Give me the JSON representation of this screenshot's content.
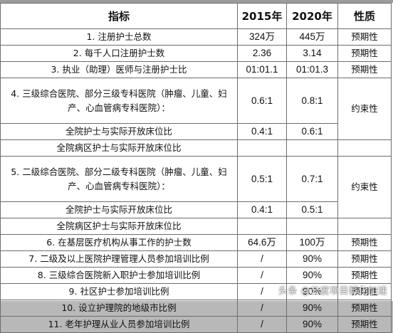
{
  "table": {
    "headers": [
      "指标",
      "2015年",
      "2020年",
      "性质"
    ],
    "rows": [
      [
        "1. 注册护士总数",
        "324万",
        "445万",
        "预期性"
      ],
      [
        "2. 每千人口注册护士数",
        "2.36",
        "3.14",
        "预期性"
      ],
      [
        "3. 执业（助理）医师与注册护士比",
        "01:01.1",
        "01:01.3",
        "预期性"
      ],
      [
        "4. 三级综合医院、部分三级专科医院（肿瘤、儿童、妇产、心血管病专科医院）：",
        "0.6:1",
        "0.8:1",
        "约束性"
      ],
      [
        "全院护士与实际开放床位比",
        "0.4:1",
        "0.6:1",
        ""
      ],
      [
        "全院病区护士与实际开放床位比",
        "",
        "",
        ""
      ],
      [
        "5. 二级综合医院、部分二级专科医院（肿瘤、儿童、妇产、心血管病专科医院）：",
        "0.5:1",
        "0.7:1",
        "约束性"
      ],
      [
        "全院护士与实际开放床位比",
        "0.4:1",
        "0.5:1",
        ""
      ],
      [
        "全院病区护士与实际开放床位比",
        "",
        "",
        ""
      ],
      [
        "6. 在基层医疗机构从事工作的护士数",
        "64.6万",
        "100万",
        "预期性"
      ],
      [
        "7. 二级及以上医院护理管理人员参加培训比例",
        "/",
        "90%",
        "预期性"
      ],
      [
        "8. 三级综合医院新入职护士参加培训比例",
        "/",
        "90%",
        "预期性"
      ],
      [
        "9. 社区护士参加培训比例",
        "/",
        "90%",
        "预期性"
      ],
      [
        "10. 设立护理院的地级市比例",
        "/",
        "90%",
        "预期性"
      ],
      [
        "11. 老年护理从业人员参加培训比例",
        "/",
        "90%",
        "预期性"
      ]
    ]
  },
  "watermark": "头条 @云度项目孵化加速"
}
